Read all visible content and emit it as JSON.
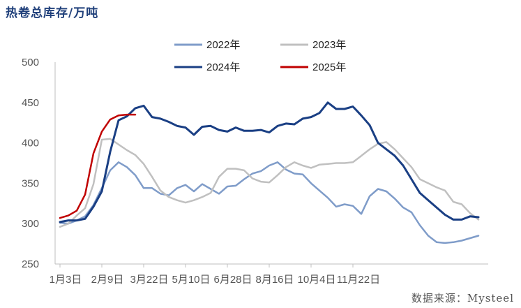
{
  "title": "热卷总库存/万吨",
  "source": "数据来源：Mysteel",
  "chart_data": {
    "type": "line",
    "title": "热卷总库存/万吨",
    "ylim": [
      250,
      500
    ],
    "yticks": [
      250,
      300,
      350,
      400,
      450,
      500
    ],
    "xticks": [
      "1月3日",
      "2月9日",
      "3月22日",
      "5月10日",
      "6月28日",
      "8月16日",
      "10月4日",
      "11月22日"
    ],
    "xtick_week_index": [
      0,
      5,
      10,
      15,
      20,
      25,
      30,
      35
    ],
    "legend_position": "top",
    "grid": false,
    "series": [
      {
        "name": "2022年",
        "color": "#7f9cc9",
        "values": [
          301,
          300,
          304,
          309,
          323,
          344,
          366,
          376,
          370,
          360,
          344,
          344,
          337,
          335,
          344,
          348,
          340,
          349,
          343,
          337,
          346,
          347,
          355,
          362,
          365,
          372,
          376,
          367,
          362,
          361,
          350,
          341,
          332,
          321,
          324,
          322,
          312,
          334,
          343,
          340,
          331,
          320,
          314,
          298,
          285,
          277,
          276,
          277,
          279,
          282,
          285
        ]
      },
      {
        "name": "2023年",
        "color": "#c0c0c0",
        "values": [
          296,
          300,
          310,
          319,
          349,
          404,
          405,
          398,
          391,
          385,
          374,
          358,
          341,
          333,
          329,
          326,
          329,
          333,
          338,
          358,
          368,
          368,
          366,
          356,
          352,
          351,
          360,
          370,
          376,
          372,
          369,
          373,
          374,
          375,
          375,
          376,
          384,
          392,
          399,
          401,
          392,
          381,
          370,
          355,
          350,
          345,
          341,
          327,
          324,
          313,
          305
        ]
      },
      {
        "name": "2024年",
        "color": "#1a3f84",
        "values": [
          302,
          304,
          304,
          306,
          321,
          340,
          389,
          428,
          433,
          443,
          446,
          432,
          430,
          426,
          421,
          419,
          410,
          420,
          421,
          416,
          414,
          419,
          415,
          415,
          416,
          413,
          421,
          424,
          423,
          430,
          432,
          437,
          450,
          442,
          442,
          445,
          434,
          422,
          400,
          392,
          384,
          372,
          355,
          338,
          329,
          320,
          311,
          305,
          305,
          309,
          308
        ]
      },
      {
        "name": "2025年",
        "color": "#c00000",
        "values": [
          307,
          310,
          316,
          336,
          387,
          414,
          429,
          434,
          435,
          435
        ]
      }
    ]
  }
}
